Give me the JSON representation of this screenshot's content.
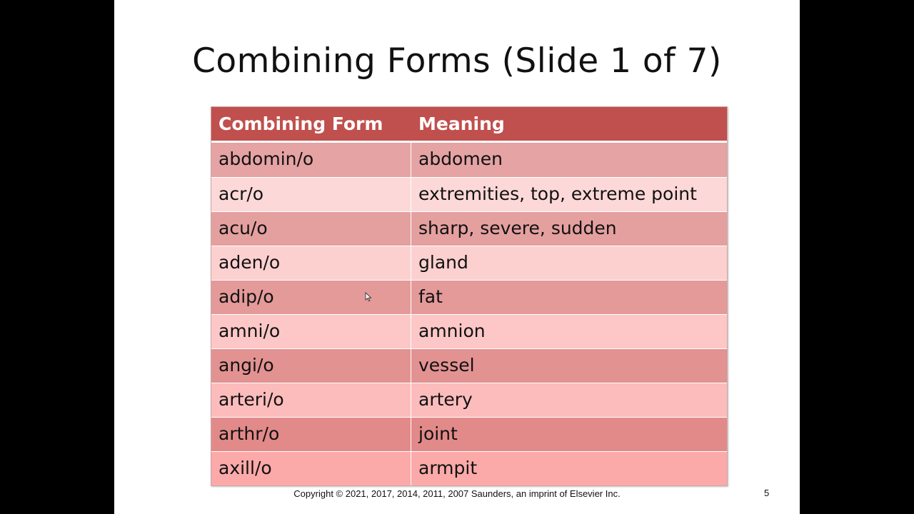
{
  "slide": {
    "title": "Combining Forms (Slide 1 of 7)",
    "footer": "Copyright ©  2021, 2017, 2014, 2011, 2007 Saunders, an imprint of Elsevier Inc.",
    "page_number": "5"
  },
  "table": {
    "headers": [
      "Combining Form",
      "Meaning"
    ],
    "header_color": "#c0504d",
    "rows": [
      {
        "form": "abdomin/o",
        "meaning": "abdomen",
        "color": "#e5a3a3"
      },
      {
        "form": "acr/o",
        "meaning": "extremities, top, extreme point",
        "color": "#fdd8d8"
      },
      {
        "form": "acu/o",
        "meaning": "sharp, severe, sudden",
        "color": "#e4a09f"
      },
      {
        "form": "aden/o",
        "meaning": "gland",
        "color": "#fdd0d0"
      },
      {
        "form": "adip/o",
        "meaning": "fat",
        "color": "#e39a99"
      },
      {
        "form": "amni/o",
        "meaning": "amnion",
        "color": "#fdc7c7"
      },
      {
        "form": "angi/o",
        "meaning": "vessel",
        "color": "#e29291"
      },
      {
        "form": "arteri/o",
        "meaning": "artery",
        "color": "#fdbcbc"
      },
      {
        "form": "arthr/o",
        "meaning": "joint",
        "color": "#e28a89"
      },
      {
        "form": "axill/o",
        "meaning": "armpit",
        "color": "#fca9a9"
      }
    ]
  }
}
